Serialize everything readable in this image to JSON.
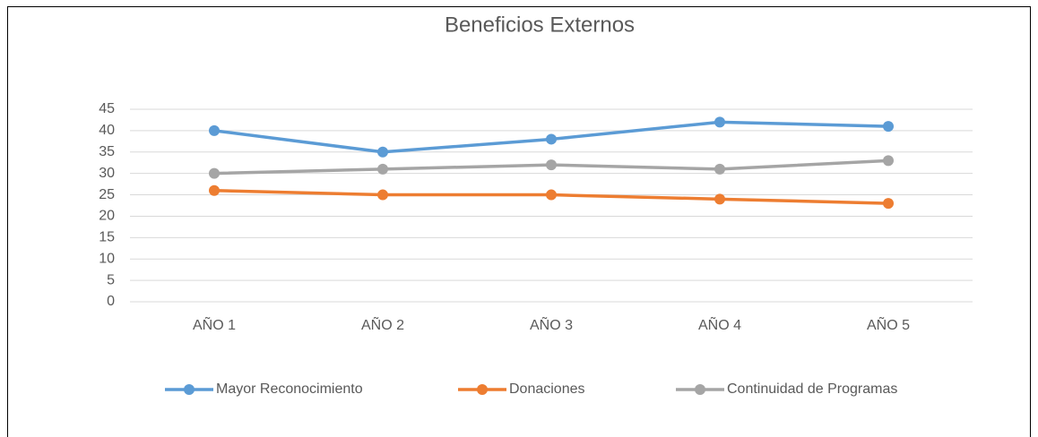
{
  "chart_data": {
    "type": "line",
    "title": "Beneficios Externos",
    "categories": [
      "AÑO 1",
      "AÑO 2",
      "AÑO 3",
      "AÑO 4",
      "AÑO 5"
    ],
    "series": [
      {
        "name": "Mayor Reconocimiento",
        "color": "#5b9bd5",
        "values": [
          40,
          35,
          38,
          42,
          41
        ]
      },
      {
        "name": "Donaciones",
        "color": "#ed7d31",
        "values": [
          26,
          25,
          25,
          24,
          23
        ]
      },
      {
        "name": "Continuidad de Programas",
        "color": "#a5a5a5",
        "values": [
          30,
          31,
          32,
          31,
          33
        ]
      }
    ],
    "ylim": [
      0,
      45
    ],
    "yticks": [
      0,
      5,
      10,
      15,
      20,
      25,
      30,
      35,
      40,
      45
    ],
    "grid": true,
    "legend": "bottom"
  }
}
